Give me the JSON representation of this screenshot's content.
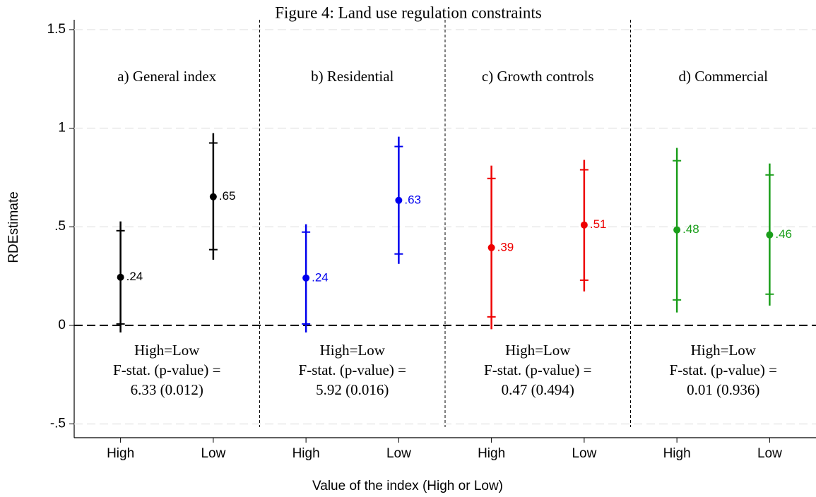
{
  "chart_data": {
    "type": "errorbar",
    "title": "Figure 4: Land use regulation constraints",
    "x_label": "Value of the index (High or Low)",
    "y_label": "RDEstimate",
    "ylim": [
      -0.57,
      1.55
    ],
    "yticks": [
      {
        "value": -0.5,
        "label": "-.5"
      },
      0,
      {
        "value": 0.5,
        "label": ".5"
      },
      1,
      1.5
    ],
    "grid": true,
    "zero_line": true,
    "panels": [
      {
        "title": "a)  General index",
        "color": "#000000",
        "categories": [
          "High",
          "Low"
        ],
        "values": [
          0.244,
          0.652
        ],
        "value_labels": [
          ".24",
          ".65"
        ],
        "ci95_low": [
          -0.036,
          0.333
        ],
        "ci95_high": [
          0.527,
          0.975
        ],
        "ci90_low": [
          0.007,
          0.384
        ],
        "ci90_high": [
          0.48,
          0.925
        ],
        "note": [
          "High=Low",
          "F-stat. (p-value) =",
          "6.33 (0.012)"
        ]
      },
      {
        "title": "b)  Residential",
        "color": "#0000ee",
        "categories": [
          "High",
          "Low"
        ],
        "values": [
          0.24,
          0.634
        ],
        "value_labels": [
          ".24",
          ".63"
        ],
        "ci95_low": [
          -0.036,
          0.312
        ],
        "ci95_high": [
          0.513,
          0.957
        ],
        "ci90_low": [
          0.007,
          0.362
        ],
        "ci90_high": [
          0.473,
          0.907
        ],
        "note": [
          "High=Low",
          "F-stat. (p-value) =",
          "5.92 (0.016)"
        ]
      },
      {
        "title": "c) Growth controls",
        "color": "#ee0000",
        "categories": [
          "High",
          "Low"
        ],
        "values": [
          0.394,
          0.509
        ],
        "value_labels": [
          ".39",
          ".51"
        ],
        "ci95_low": [
          -0.02,
          0.172
        ],
        "ci95_high": [
          0.81,
          0.839
        ],
        "ci90_low": [
          0.043,
          0.229
        ],
        "ci90_high": [
          0.745,
          0.789
        ],
        "note": [
          "High=Low",
          "F-stat. (p-value) =",
          "0.47 (0.494)"
        ]
      },
      {
        "title": "d)  Commercial",
        "color": "#1a9e1a",
        "categories": [
          "High",
          "Low"
        ],
        "values": [
          0.484,
          0.459
        ],
        "value_labels": [
          ".48",
          ".46"
        ],
        "ci95_low": [
          0.065,
          0.1
        ],
        "ci95_high": [
          0.9,
          0.821
        ],
        "ci90_low": [
          0.129,
          0.158
        ],
        "ci90_high": [
          0.835,
          0.763
        ],
        "note": [
          "High=Low",
          "F-stat. (p-value) =",
          "0.01 (0.936)"
        ]
      }
    ]
  }
}
